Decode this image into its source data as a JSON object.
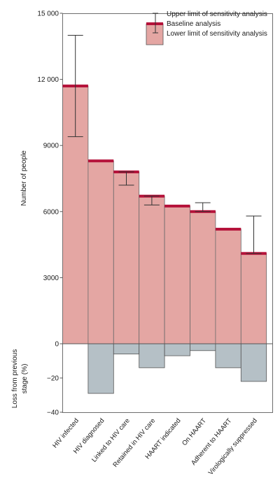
{
  "chart_data": {
    "type": "bar",
    "categories": [
      "HIV infected",
      "HIV diagnosed",
      "Linked to HIV care",
      "Retained in HIV care",
      "HAART indicated",
      "On HAART",
      "Adherent to HAART",
      "Virologically suppressed"
    ],
    "top_panel": {
      "ylabel": "Number of people",
      "ylim": [
        0,
        15000
      ],
      "yticks": [
        0,
        3000,
        6000,
        9000,
        12000,
        15000
      ],
      "ytick_labels": [
        "0",
        "3000",
        "6000",
        "9000",
        "12 000",
        "15 000"
      ],
      "series": [
        {
          "name": "Baseline analysis",
          "values": [
            11700,
            8300,
            7800,
            6700,
            6250,
            6000,
            5200,
            4100
          ]
        }
      ],
      "error_bars": [
        {
          "lower": 9400,
          "upper": 14000
        },
        null,
        {
          "lower": 7200,
          "upper": 7800
        },
        {
          "lower": 6300,
          "upper": 6700
        },
        null,
        {
          "lower": 6000,
          "upper": 6400
        },
        null,
        {
          "lower": 4100,
          "upper": 5800
        }
      ]
    },
    "bottom_panel": {
      "ylabel": "Loss from previous stage (%)",
      "ylim": [
        -40,
        0
      ],
      "yticks": [
        0,
        -20,
        -40
      ],
      "ytick_labels": [
        "0",
        "−20",
        "−40"
      ],
      "values": [
        0,
        -29,
        -6,
        -14,
        -7,
        -4,
        -14,
        -22
      ]
    },
    "legend": {
      "placement": "top-right",
      "items": [
        "Upper limit of sensitivity analysis",
        "Baseline analysis",
        "Lower limit of sensitivity analysis"
      ]
    },
    "colors": {
      "bar_fill": "#e4a6a3",
      "baseline": "#b5123a",
      "loss_fill": "#b5c0c6",
      "error_bar": "#333333"
    },
    "grid": false
  }
}
